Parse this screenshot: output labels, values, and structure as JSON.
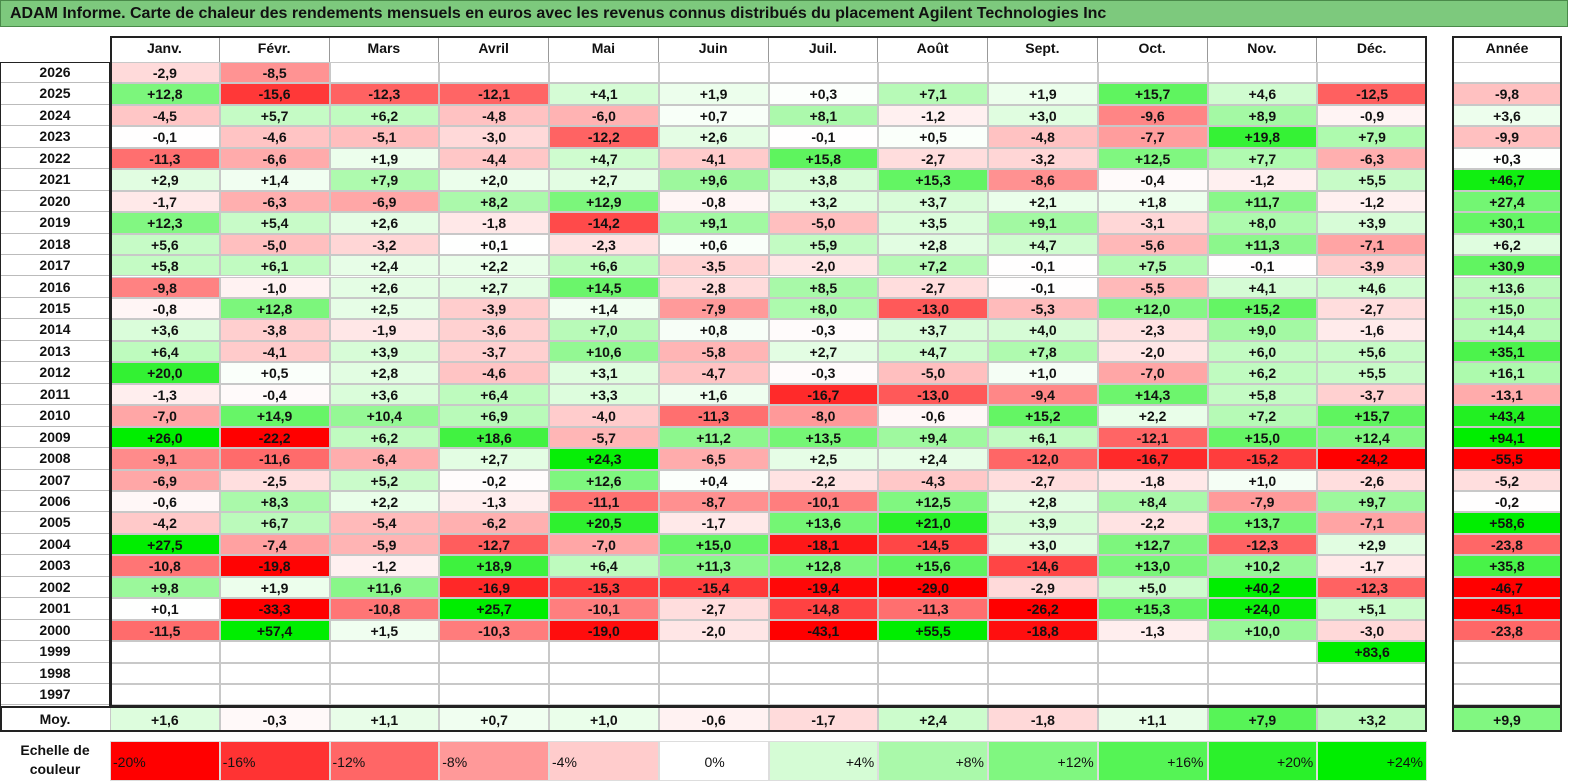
{
  "title": "ADAM Informe. Carte de chaleur des rendements mensuels en euros avec les revenus connus distribués du placement Agilent Technologies Inc",
  "chart_data": {
    "type": "heatmap",
    "columns": [
      "Janv.",
      "Févr.",
      "Mars",
      "Avril",
      "Mai",
      "Juin",
      "Juil.",
      "Août",
      "Sept.",
      "Oct.",
      "Nov.",
      "Déc."
    ],
    "year_column_label": "Année",
    "rows": [
      {
        "year": "2026",
        "months": [
          "-2,9",
          "-8,5",
          "",
          "",
          "",
          "",
          "",
          "",
          "",
          "",
          "",
          ""
        ],
        "annual": ""
      },
      {
        "year": "2025",
        "months": [
          "+12,8",
          "-15,6",
          "-12,3",
          "-12,1",
          "+4,1",
          "+1,9",
          "+0,3",
          "+7,1",
          "+1,9",
          "+15,7",
          "+4,6",
          "-12,5"
        ],
        "annual": "-9,8"
      },
      {
        "year": "2024",
        "months": [
          "-4,5",
          "+5,7",
          "+6,2",
          "-4,8",
          "-6,0",
          "+0,7",
          "+8,1",
          "-1,2",
          "+3,0",
          "-9,6",
          "+8,9",
          "-0,9"
        ],
        "annual": "+3,6"
      },
      {
        "year": "2023",
        "months": [
          "-0,1",
          "-4,6",
          "-5,1",
          "-3,0",
          "-12,2",
          "+2,6",
          "-0,1",
          "+0,5",
          "-4,8",
          "-7,7",
          "+19,8",
          "+7,9"
        ],
        "annual": "-9,9"
      },
      {
        "year": "2022",
        "months": [
          "-11,3",
          "-6,6",
          "+1,9",
          "-4,4",
          "+4,7",
          "-4,1",
          "+15,8",
          "-2,7",
          "-3,2",
          "+12,5",
          "+7,7",
          "-6,3"
        ],
        "annual": "+0,3"
      },
      {
        "year": "2021",
        "months": [
          "+2,9",
          "+1,4",
          "+7,9",
          "+2,0",
          "+2,7",
          "+9,6",
          "+3,8",
          "+15,3",
          "-8,6",
          "-0,4",
          "-1,2",
          "+5,5"
        ],
        "annual": "+46,7"
      },
      {
        "year": "2020",
        "months": [
          "-1,7",
          "-6,3",
          "-6,9",
          "+8,2",
          "+12,9",
          "-0,8",
          "+3,2",
          "+3,7",
          "+2,1",
          "+1,8",
          "+11,7",
          "-1,2"
        ],
        "annual": "+27,4"
      },
      {
        "year": "2019",
        "months": [
          "+12,3",
          "+5,4",
          "+2,6",
          "-1,8",
          "-14,2",
          "+9,1",
          "-5,0",
          "+3,5",
          "+9,1",
          "-3,1",
          "+8,0",
          "+3,9"
        ],
        "annual": "+30,1"
      },
      {
        "year": "2018",
        "months": [
          "+5,6",
          "-5,0",
          "-3,2",
          "+0,1",
          "-2,3",
          "+0,6",
          "+5,9",
          "+2,8",
          "+4,7",
          "-5,6",
          "+11,3",
          "-7,1"
        ],
        "annual": "+6,2"
      },
      {
        "year": "2017",
        "months": [
          "+5,8",
          "+6,1",
          "+2,4",
          "+2,2",
          "+6,6",
          "-3,5",
          "-2,0",
          "+7,2",
          "-0,1",
          "+7,5",
          "-0,1",
          "-3,9"
        ],
        "annual": "+30,9"
      },
      {
        "year": "2016",
        "months": [
          "-9,8",
          "-1,0",
          "+2,6",
          "+2,7",
          "+14,5",
          "-2,8",
          "+8,5",
          "-2,7",
          "-0,1",
          "-5,5",
          "+4,1",
          "+4,6"
        ],
        "annual": "+13,6"
      },
      {
        "year": "2015",
        "months": [
          "-0,8",
          "+12,8",
          "+2,5",
          "-3,9",
          "+1,4",
          "-7,9",
          "+8,0",
          "-13,0",
          "-5,3",
          "+12,0",
          "+15,2",
          "-2,7"
        ],
        "annual": "+15,0"
      },
      {
        "year": "2014",
        "months": [
          "+3,6",
          "-3,8",
          "-1,9",
          "-3,6",
          "+7,0",
          "+0,8",
          "-0,3",
          "+3,7",
          "+4,0",
          "-2,3",
          "+9,0",
          "-1,6"
        ],
        "annual": "+14,4"
      },
      {
        "year": "2013",
        "months": [
          "+6,4",
          "-4,1",
          "+3,9",
          "-3,7",
          "+10,6",
          "-5,8",
          "+2,7",
          "+4,7",
          "+7,8",
          "-2,0",
          "+6,0",
          "+5,6"
        ],
        "annual": "+35,1"
      },
      {
        "year": "2012",
        "months": [
          "+20,0",
          "+0,5",
          "+2,8",
          "-4,6",
          "+3,1",
          "-4,7",
          "-0,3",
          "-5,0",
          "+1,0",
          "-7,0",
          "+6,2",
          "+5,5"
        ],
        "annual": "+16,1"
      },
      {
        "year": "2011",
        "months": [
          "-1,3",
          "-0,4",
          "+3,6",
          "+6,4",
          "+3,3",
          "+1,6",
          "-16,7",
          "-13,0",
          "-9,4",
          "+14,3",
          "+5,8",
          "-3,7"
        ],
        "annual": "-13,1"
      },
      {
        "year": "2010",
        "months": [
          "-7,0",
          "+14,9",
          "+10,4",
          "+6,9",
          "-4,0",
          "-11,3",
          "-8,0",
          "-0,6",
          "+15,2",
          "+2,2",
          "+7,2",
          "+15,7"
        ],
        "annual": "+43,4"
      },
      {
        "year": "2009",
        "months": [
          "+26,0",
          "-22,2",
          "+6,2",
          "+18,6",
          "-5,7",
          "+11,2",
          "+13,5",
          "+9,4",
          "+6,1",
          "-12,1",
          "+15,0",
          "+12,4"
        ],
        "annual": "+94,1"
      },
      {
        "year": "2008",
        "months": [
          "-9,1",
          "-11,6",
          "-6,4",
          "+2,7",
          "+24,3",
          "-6,5",
          "+2,5",
          "+2,4",
          "-12,0",
          "-16,7",
          "-15,2",
          "-24,2"
        ],
        "annual": "-55,5"
      },
      {
        "year": "2007",
        "months": [
          "-6,9",
          "-2,5",
          "+5,2",
          "-0,2",
          "+12,6",
          "+0,4",
          "-2,2",
          "-4,3",
          "-2,7",
          "-1,8",
          "+1,0",
          "-2,6"
        ],
        "annual": "-5,2"
      },
      {
        "year": "2006",
        "months": [
          "-0,6",
          "+8,3",
          "+2,2",
          "-1,3",
          "-11,1",
          "-8,7",
          "-10,1",
          "+12,5",
          "+2,8",
          "+8,4",
          "-7,9",
          "+9,7"
        ],
        "annual": "-0,2"
      },
      {
        "year": "2005",
        "months": [
          "-4,2",
          "+6,7",
          "-5,4",
          "-6,2",
          "+20,5",
          "-1,7",
          "+13,6",
          "+21,0",
          "+3,9",
          "-2,2",
          "+13,7",
          "-7,1"
        ],
        "annual": "+58,6"
      },
      {
        "year": "2004",
        "months": [
          "+27,5",
          "-7,4",
          "-5,9",
          "-12,7",
          "-7,0",
          "+15,0",
          "-18,1",
          "-14,5",
          "+3,0",
          "+12,7",
          "-12,3",
          "+2,9"
        ],
        "annual": "-23,8"
      },
      {
        "year": "2003",
        "months": [
          "-10,8",
          "-19,8",
          "-1,2",
          "+18,9",
          "+6,4",
          "+11,3",
          "+12,8",
          "+15,6",
          "-14,6",
          "+13,0",
          "+10,2",
          "-1,7"
        ],
        "annual": "+35,8"
      },
      {
        "year": "2002",
        "months": [
          "+9,8",
          "+1,9",
          "+11,6",
          "-16,9",
          "-15,3",
          "-15,4",
          "-19,4",
          "-29,0",
          "-2,9",
          "+5,0",
          "+40,2",
          "-12,3"
        ],
        "annual": "-46,7"
      },
      {
        "year": "2001",
        "months": [
          "+0,1",
          "-33,3",
          "-10,8",
          "+25,7",
          "-10,1",
          "-2,7",
          "-14,8",
          "-11,3",
          "-26,2",
          "+15,3",
          "+24,0",
          "+5,1"
        ],
        "annual": "-45,1"
      },
      {
        "year": "2000",
        "months": [
          "-11,5",
          "+57,4",
          "+1,5",
          "-10,3",
          "-19,0",
          "-2,0",
          "-43,1",
          "+55,5",
          "-18,8",
          "-1,3",
          "+10,0",
          "-3,0"
        ],
        "annual": "-23,8"
      },
      {
        "year": "1999",
        "months": [
          "",
          "",
          "",
          "",
          "",
          "",
          "",
          "",
          "",
          "",
          "",
          "+83,6"
        ],
        "annual": ""
      },
      {
        "year": "1998",
        "months": [
          "",
          "",
          "",
          "",
          "",
          "",
          "",
          "",
          "",
          "",
          "",
          ""
        ],
        "annual": ""
      },
      {
        "year": "1997",
        "months": [
          "",
          "",
          "",
          "",
          "",
          "",
          "",
          "",
          "",
          "",
          "",
          ""
        ],
        "annual": ""
      }
    ],
    "average": {
      "label": "Moy.",
      "months": [
        "+1,6",
        "-0,3",
        "+1,1",
        "+0,7",
        "+1,0",
        "-0,6",
        "-1,7",
        "+2,4",
        "-1,8",
        "+1,1",
        "+7,9",
        "+3,2"
      ],
      "annual": "+9,9"
    },
    "color_scale": {
      "label": "Echelle de couleur",
      "stops": [
        "-20%",
        "-16%",
        "-12%",
        "-8%",
        "-4%",
        "0%",
        "+4%",
        "+8%",
        "+12%",
        "+16%",
        "+20%",
        "+24%"
      ]
    },
    "colors": {
      "negative": "#ff0000",
      "neutral": "#ffffff",
      "positive": "#00ee00",
      "title_bg": "#7dc97d"
    }
  }
}
